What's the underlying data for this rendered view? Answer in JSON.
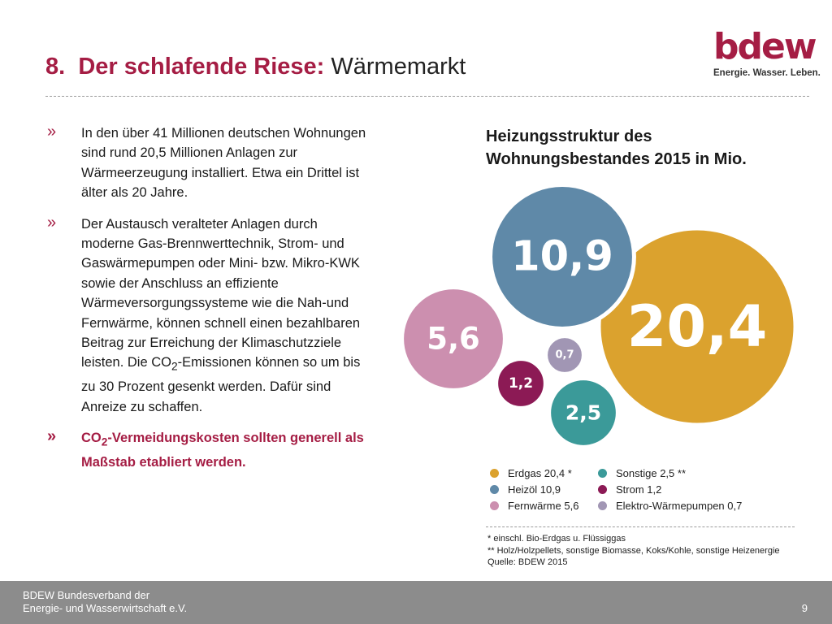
{
  "header": {
    "number": "8.",
    "title_highlight": "Der schlafende Riese:",
    "title_rest": "Wärmemarkt"
  },
  "logo": {
    "wordmark": "bdew",
    "tagline": "Energie. Wasser. Leben.",
    "color": "#a51d44"
  },
  "bullets": {
    "b1": "In den über 41 Millionen deutschen Wohnungen sind rund 20,5 Millionen Anlagen zur Wärmeerzeugung installiert. Etwa ein Drittel ist älter als 20 Jahre.",
    "b2_pre": "Der Austausch veralteter Anlagen durch moderne Gas-Brennwerttechnik, Strom- und Gaswärmepumpen oder Mini- bzw. Mikro-KWK sowie der Anschluss an effiziente Wärmeversorgungssysteme wie die Nah-und Fernwärme, können schnell einen bezahlbaren Beitrag zur Erreichung der Klimaschutzziele leisten. Die CO",
    "b2_sub": "2",
    "b2_post": "-Emissionen können so um bis zu 30 Prozent gesenkt werden. Dafür sind Anreize zu schaffen.",
    "b3_pre": "CO",
    "b3_sub": "2",
    "b3_post": "-Vermeidungskosten sollten generell als Maßstab etabliert werden."
  },
  "chart_data": {
    "type": "bubble",
    "title": "Heizungsstruktur des Wohnungsbestandes 2015 in Mio.",
    "series": [
      {
        "name": "Erdgas 20,4 *",
        "value": 20.4,
        "label": "20,4",
        "color": "#dba22e"
      },
      {
        "name": "Heizöl 10,9",
        "value": 10.9,
        "label": "10,9",
        "color": "#5f89a8"
      },
      {
        "name": "Fernwärme 5,6",
        "value": 5.6,
        "label": "5,6",
        "color": "#cc8faf"
      },
      {
        "name": "Sonstige 2,5 **",
        "value": 2.5,
        "label": "2,5",
        "color": "#3b9a99"
      },
      {
        "name": "Strom 1,2",
        "value": 1.2,
        "label": "1,2",
        "color": "#8c1a55"
      },
      {
        "name": "Elektro-Wärmepumpen 0,7",
        "value": 0.7,
        "label": "0,7",
        "color": "#a196b4"
      }
    ]
  },
  "footnotes": {
    "f1": "*   einschl. Bio-Erdgas u. Flüssiggas",
    "f2": "**  Holz/Holzpellets, sonstige Biomasse, Koks/Kohle, sonstige Heizenergie",
    "source": "Quelle: BDEW 2015"
  },
  "footer": {
    "org_line1": "BDEW Bundesverband der",
    "org_line2": "Energie- und Wasserwirtschaft e.V.",
    "page": "9"
  }
}
